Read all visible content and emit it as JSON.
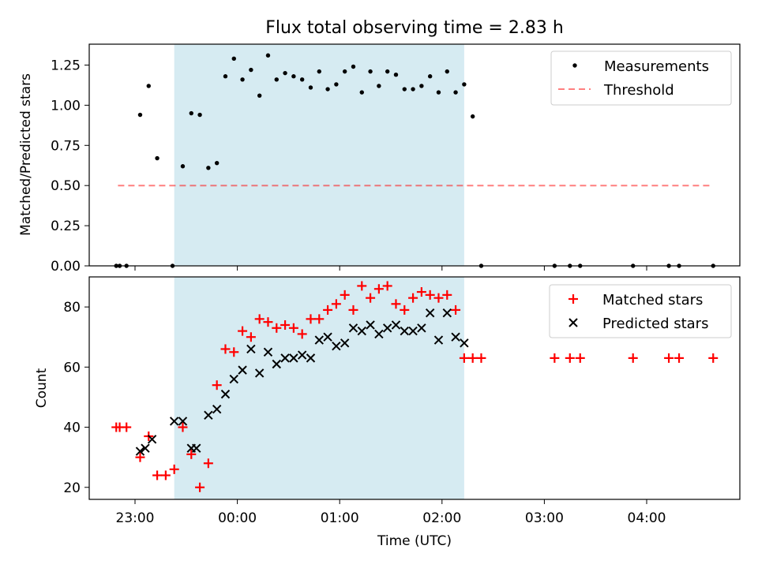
{
  "title": "Flux total observing time = 2.83 h",
  "xlabel": "Time (UTC)",
  "xticks": [
    "23:00",
    "00:00",
    "01:00",
    "02:00",
    "03:00",
    "04:00"
  ],
  "colors": {
    "shade": "#add8e6",
    "threshold": "#ff0000",
    "matched": "#ff0000",
    "predicted": "#000000",
    "measurement": "#000000"
  },
  "chart_data": [
    {
      "type": "scatter",
      "ylabel": "Matched/Predicted stars",
      "ylim": [
        0,
        1.38
      ],
      "yticks": [
        "0.00",
        "0.25",
        "0.50",
        "0.75",
        "1.00",
        "1.25"
      ],
      "legend_position": "top-right",
      "observing_window": [
        "23:23",
        "02:13"
      ],
      "series": [
        {
          "name": "Measurements",
          "x": [
            "22:49",
            "22:51",
            "22:55",
            "23:03",
            "23:08",
            "23:13",
            "23:22",
            "23:28",
            "23:33",
            "23:38",
            "23:43",
            "23:48",
            "23:53",
            "23:58",
            "00:03",
            "00:08",
            "00:13",
            "00:18",
            "00:23",
            "00:28",
            "00:33",
            "00:38",
            "00:43",
            "00:48",
            "00:53",
            "00:58",
            "01:03",
            "01:08",
            "01:13",
            "01:18",
            "01:23",
            "01:28",
            "01:33",
            "01:38",
            "01:43",
            "01:48",
            "01:53",
            "01:58",
            "02:03",
            "02:08",
            "02:13",
            "02:18",
            "02:23",
            "03:06",
            "03:15",
            "03:21",
            "03:52",
            "04:13",
            "04:19",
            "04:39"
          ],
          "y": [
            0,
            0,
            0,
            0.94,
            1.12,
            0.67,
            0,
            0.62,
            0.95,
            0.94,
            0.61,
            0.64,
            1.18,
            1.29,
            1.16,
            1.22,
            1.06,
            1.31,
            1.16,
            1.2,
            1.18,
            1.16,
            1.11,
            1.21,
            1.1,
            1.13,
            1.21,
            1.24,
            1.08,
            1.21,
            1.12,
            1.21,
            1.19,
            1.1,
            1.1,
            1.12,
            1.18,
            1.08,
            1.21,
            1.08,
            1.13,
            0.93,
            0,
            0,
            0,
            0,
            0,
            0,
            0,
            0
          ]
        },
        {
          "name": "Threshold",
          "x": [
            "22:50",
            "04:39"
          ],
          "y": [
            0.5,
            0.5
          ]
        }
      ]
    },
    {
      "type": "scatter",
      "ylabel": "Count",
      "ylim": [
        16,
        90
      ],
      "yticks": [
        "20",
        "40",
        "60",
        "80"
      ],
      "legend_position": "top-right",
      "series": [
        {
          "name": "Matched stars",
          "x": [
            "22:49",
            "22:51",
            "22:55",
            "23:03",
            "23:08",
            "23:13",
            "23:18",
            "23:23",
            "23:28",
            "23:33",
            "23:38",
            "23:43",
            "23:48",
            "23:53",
            "23:58",
            "00:03",
            "00:08",
            "00:13",
            "00:18",
            "00:23",
            "00:28",
            "00:33",
            "00:38",
            "00:43",
            "00:48",
            "00:53",
            "00:58",
            "01:03",
            "01:08",
            "01:13",
            "01:18",
            "01:23",
            "01:28",
            "01:33",
            "01:38",
            "01:43",
            "01:48",
            "01:53",
            "01:58",
            "02:03",
            "02:08",
            "02:13",
            "02:18",
            "02:23",
            "03:06",
            "03:15",
            "03:21",
            "03:52",
            "04:13",
            "04:19",
            "04:39"
          ],
          "y": [
            40,
            40,
            40,
            30,
            37,
            24,
            24,
            26,
            40,
            31,
            20,
            28,
            54,
            66,
            65,
            72,
            70,
            76,
            75,
            73,
            74,
            73,
            71,
            76,
            76,
            79,
            81,
            84,
            79,
            87,
            83,
            86,
            87,
            81,
            79,
            83,
            85,
            84,
            83,
            84,
            79,
            63,
            63,
            63,
            63,
            63,
            63,
            63,
            63,
            63,
            63
          ]
        },
        {
          "name": "Predicted stars",
          "x": [
            "23:03",
            "23:06",
            "23:10",
            "23:23",
            "23:28",
            "23:33",
            "23:36",
            "23:43",
            "23:48",
            "23:53",
            "23:58",
            "00:03",
            "00:08",
            "00:13",
            "00:18",
            "00:23",
            "00:28",
            "00:33",
            "00:38",
            "00:43",
            "00:48",
            "00:53",
            "00:58",
            "01:03",
            "01:08",
            "01:13",
            "01:18",
            "01:23",
            "01:28",
            "01:33",
            "01:38",
            "01:43",
            "01:48",
            "01:53",
            "01:58",
            "02:03",
            "02:08",
            "02:13"
          ],
          "y": [
            32,
            33,
            36,
            42,
            42,
            33,
            33,
            44,
            46,
            51,
            56,
            59,
            66,
            58,
            65,
            61,
            63,
            63,
            64,
            63,
            69,
            70,
            67,
            68,
            73,
            72,
            74,
            71,
            73,
            74,
            72,
            72,
            73,
            78,
            69,
            78,
            70,
            68
          ]
        }
      ]
    }
  ]
}
